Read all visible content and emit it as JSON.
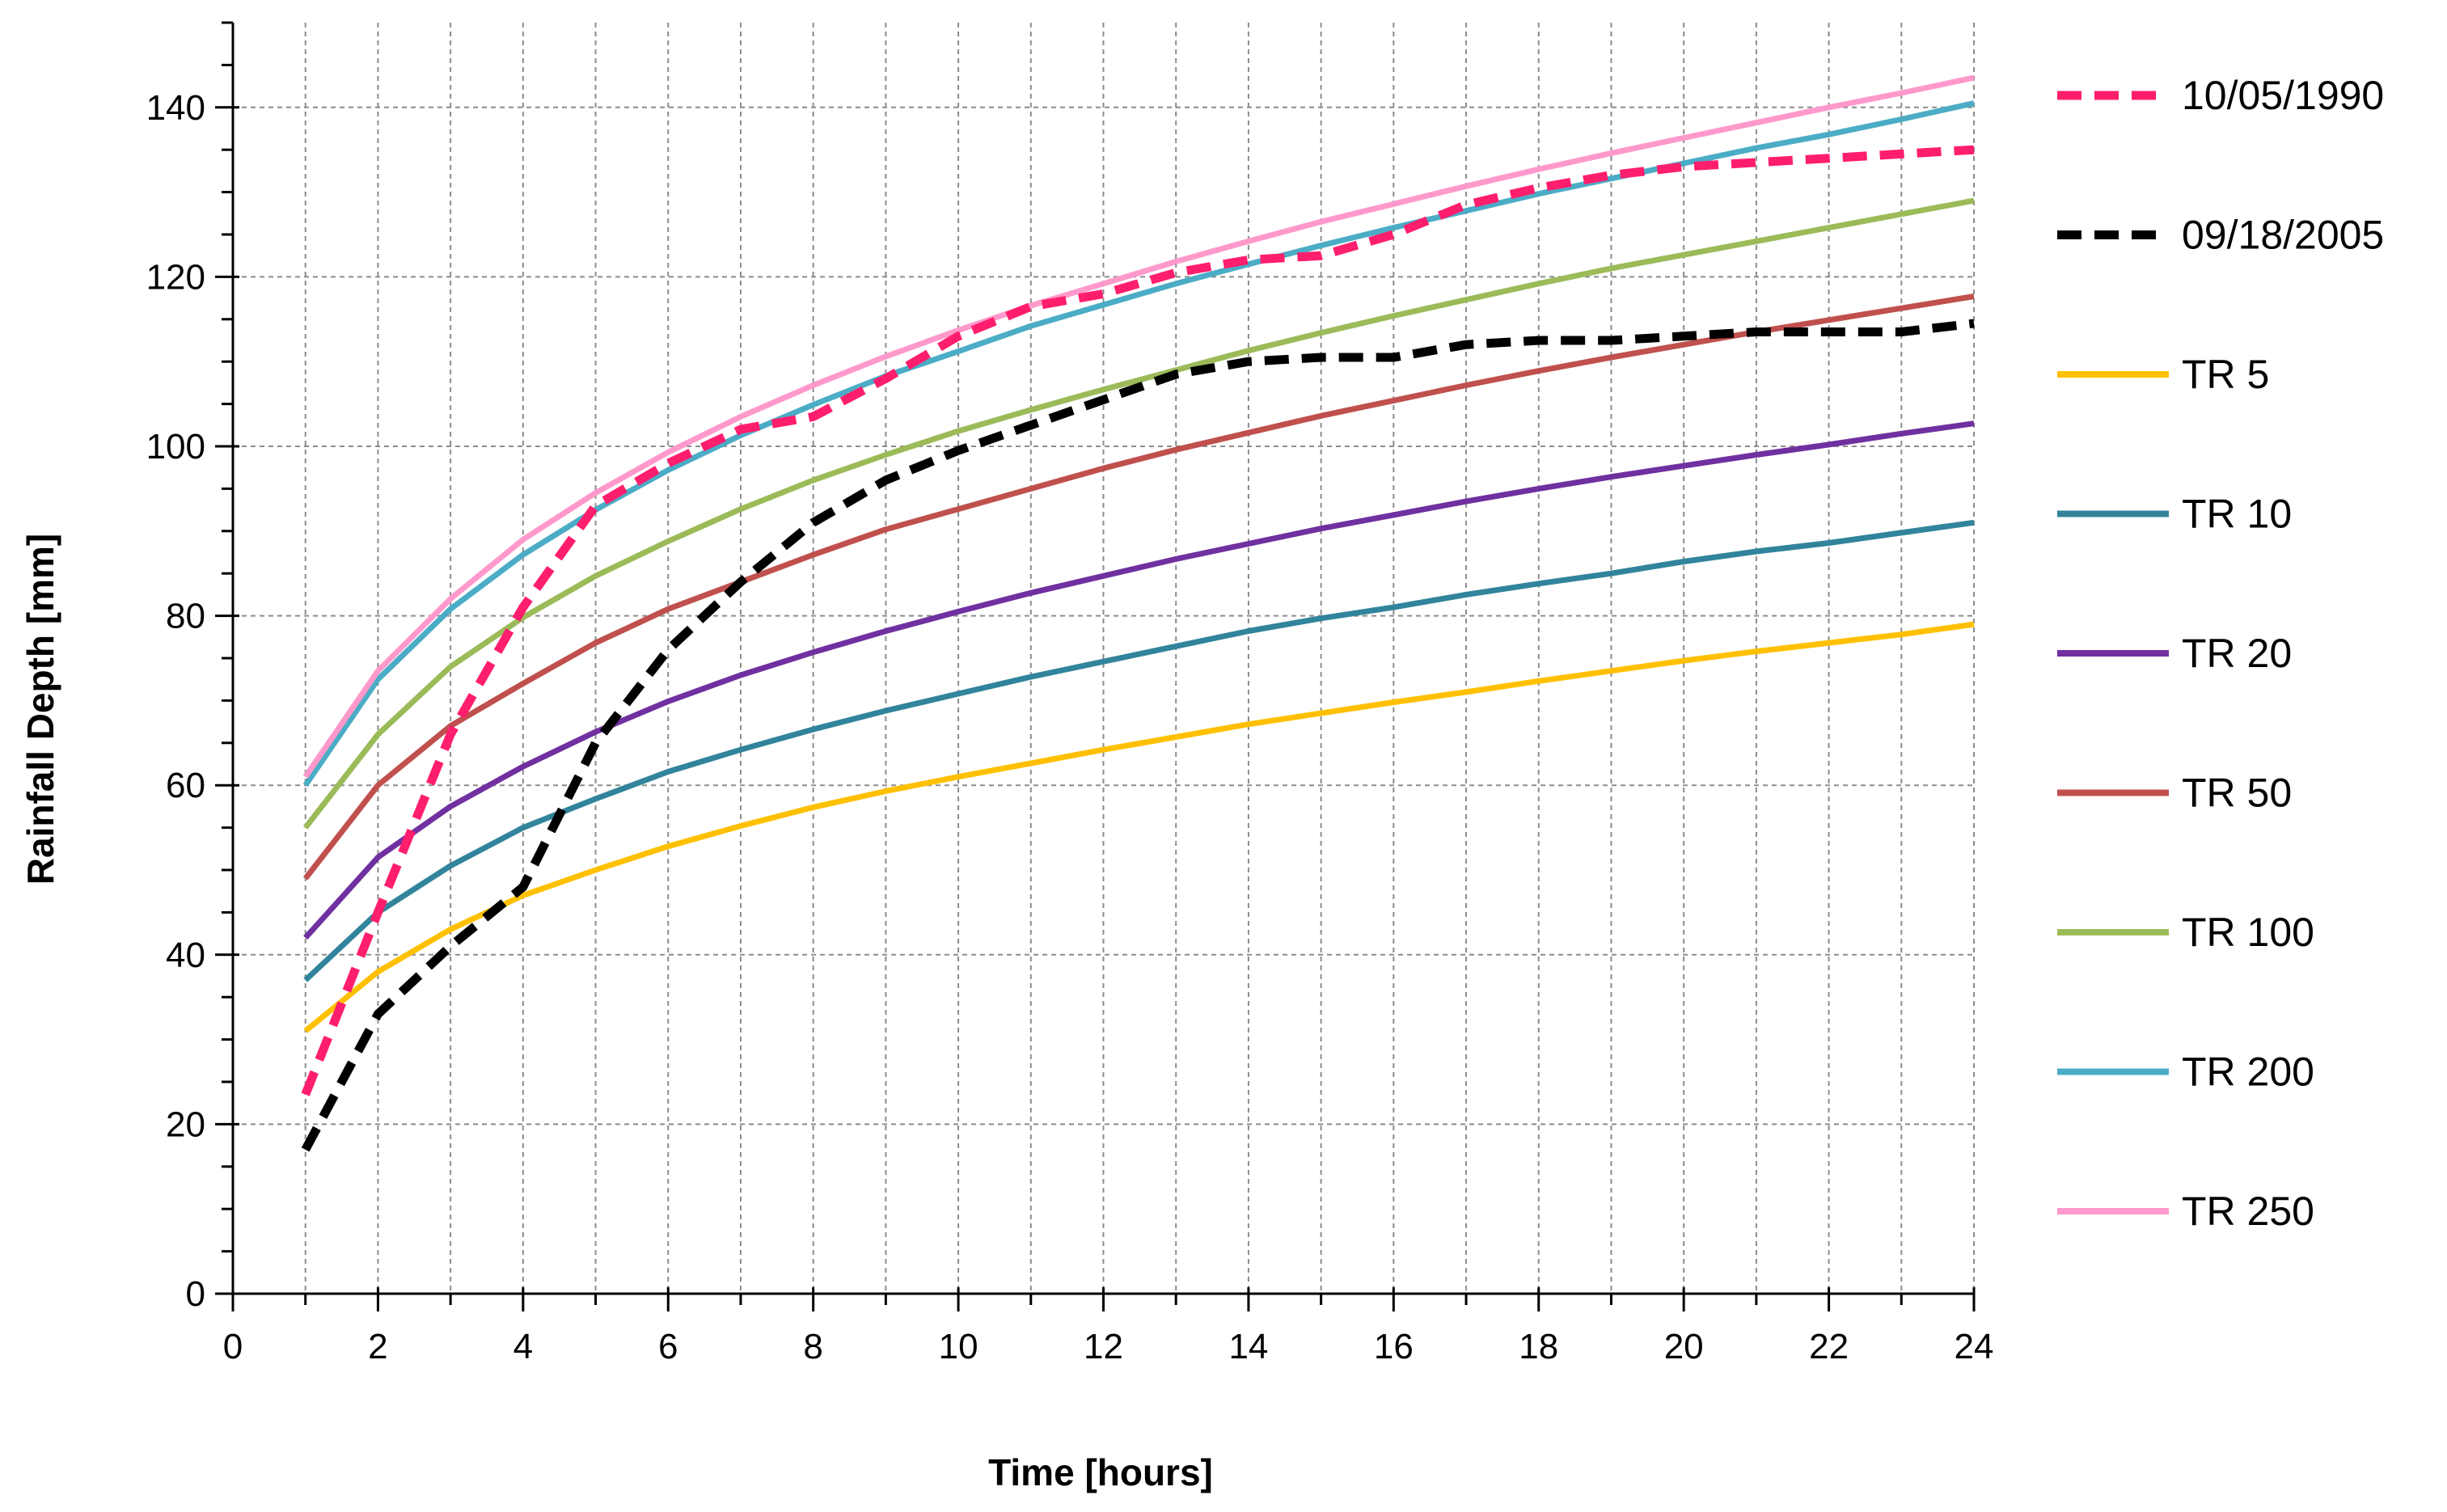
{
  "chart_data": {
    "type": "line",
    "title": "",
    "xlabel": "Time [hours]",
    "ylabel": "Rainfall Depth [mm]",
    "xlim": [
      0,
      24
    ],
    "ylim": [
      0,
      150
    ],
    "x_ticks": [
      0,
      2,
      4,
      6,
      8,
      10,
      12,
      14,
      16,
      18,
      20,
      22,
      24
    ],
    "y_ticks": [
      0,
      20,
      40,
      60,
      80,
      100,
      120,
      140
    ],
    "x_minor_step": 1,
    "y_minor_step": 5,
    "grid": true,
    "legend_position": "right",
    "x": [
      1,
      2,
      3,
      4,
      5,
      6,
      7,
      8,
      9,
      10,
      11,
      12,
      13,
      14,
      15,
      16,
      17,
      18,
      19,
      20,
      21,
      22,
      23,
      24
    ],
    "series": [
      {
        "name": "10/05/1990",
        "color": "#ff1e6e",
        "dash": true,
        "values": [
          23.5,
          45,
          66,
          81,
          93,
          98,
          102,
          103.5,
          108,
          113,
          116.5,
          118,
          120.5,
          122,
          122.5,
          125,
          128.5,
          130.5,
          132,
          133,
          133.5,
          134,
          134.5,
          135
        ]
      },
      {
        "name": "09/18/2005",
        "color": "#000000",
        "dash": true,
        "values": [
          17,
          33,
          41,
          48,
          65,
          76,
          84,
          91,
          96,
          99.5,
          102.5,
          105.5,
          108.5,
          110,
          110.5,
          110.5,
          112,
          112.5,
          112.5,
          113,
          113.5,
          113.5,
          113.5,
          114.5
        ]
      },
      {
        "name": "TR 5",
        "color": "#ffc000",
        "dash": false,
        "values": [
          31,
          38,
          43,
          47,
          50,
          52.8,
          55.2,
          57.4,
          59.3,
          61,
          62.6,
          64.2,
          65.7,
          67.2,
          68.5,
          69.8,
          71,
          72.3,
          73.5,
          74.7,
          75.8,
          76.8,
          77.8,
          79
        ]
      },
      {
        "name": "TR 10",
        "color": "#31849b",
        "dash": false,
        "values": [
          37,
          45,
          50.5,
          55,
          58.4,
          61.6,
          64.2,
          66.6,
          68.8,
          70.8,
          72.8,
          74.6,
          76.4,
          78.2,
          79.7,
          81,
          82.5,
          83.8,
          85,
          86.4,
          87.6,
          88.6,
          89.8,
          91
        ]
      },
      {
        "name": "TR 20",
        "color": "#7030a0",
        "dash": false,
        "values": [
          42,
          51.5,
          57.5,
          62.2,
          66.3,
          69.9,
          73,
          75.7,
          78.2,
          80.5,
          82.7,
          84.7,
          86.7,
          88.5,
          90.3,
          91.9,
          93.5,
          95,
          96.4,
          97.7,
          99,
          100.2,
          101.5,
          102.7
        ]
      },
      {
        "name": "TR 50",
        "color": "#c0504d",
        "dash": false,
        "values": [
          49,
          60,
          67,
          72,
          76.8,
          80.8,
          84,
          87.2,
          90.2,
          92.6,
          95,
          97.4,
          99.6,
          101.6,
          103.6,
          105.4,
          107.2,
          108.9,
          110.5,
          112,
          113.5,
          114.9,
          116.3,
          117.7
        ]
      },
      {
        "name": "TR 100",
        "color": "#9bbb59",
        "dash": false,
        "values": [
          55,
          66,
          74,
          79.8,
          84.7,
          88.8,
          92.6,
          96,
          99,
          101.8,
          104.3,
          106.7,
          109,
          111.3,
          113.4,
          115.4,
          117.3,
          119.2,
          121,
          122.6,
          124.2,
          125.8,
          127.4,
          129
        ]
      },
      {
        "name": "TR 200",
        "color": "#4bacc6",
        "dash": false,
        "values": [
          60,
          72.5,
          80.8,
          87.2,
          92.5,
          97.2,
          101.3,
          104.9,
          108.3,
          111.2,
          114.2,
          116.7,
          119.2,
          121.5,
          123.7,
          125.8,
          127.8,
          129.8,
          131.6,
          133.4,
          135.2,
          136.8,
          138.6,
          140.5
        ]
      },
      {
        "name": "TR 250",
        "color": "#ff99cc",
        "dash": false,
        "values": [
          61,
          73.5,
          82,
          89,
          94.5,
          99.3,
          103.5,
          107.2,
          110.6,
          113.7,
          116.6,
          119.2,
          121.8,
          124.2,
          126.5,
          128.6,
          130.7,
          132.7,
          134.6,
          136.4,
          138.2,
          140,
          141.7,
          143.5
        ]
      }
    ]
  }
}
